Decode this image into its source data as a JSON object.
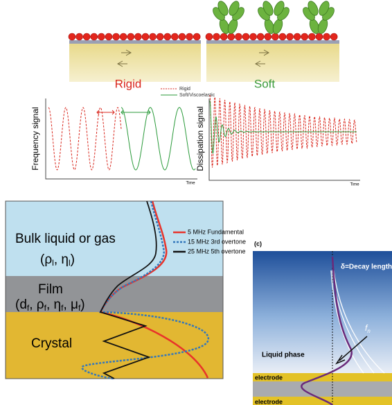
{
  "top": {
    "rigid_label": "Rigid",
    "soft_label": "Soft",
    "legend": [
      "Rigid",
      "Soft/Viscoelastic"
    ],
    "frequency_axis": "Frequency signal",
    "frequency_time": "Time",
    "dissipation_axis": "Dissipation signal",
    "dissipation_time": "Time"
  },
  "layers": {
    "bulk": "Bulk liquid or gas",
    "bulk_params": [
      "(ρ",
      "l",
      ", η",
      "l",
      ")"
    ],
    "film": "Film",
    "film_params": [
      "(d",
      "f",
      ", ρ",
      "f",
      ", η",
      "f",
      ", μ",
      "f",
      ")"
    ],
    "crystal": "Crystal",
    "legend": [
      "5 MHz Fundamental",
      "15 MHz 3rd overtone",
      "25 MHz 5th overtone"
    ]
  },
  "panel_c": {
    "tag": "(c)",
    "decay": "δ=Decay length",
    "liquid": "Liquid phase",
    "frequency": [
      "f",
      "n"
    ],
    "electrodes": [
      "electrode",
      "electrode"
    ]
  }
}
